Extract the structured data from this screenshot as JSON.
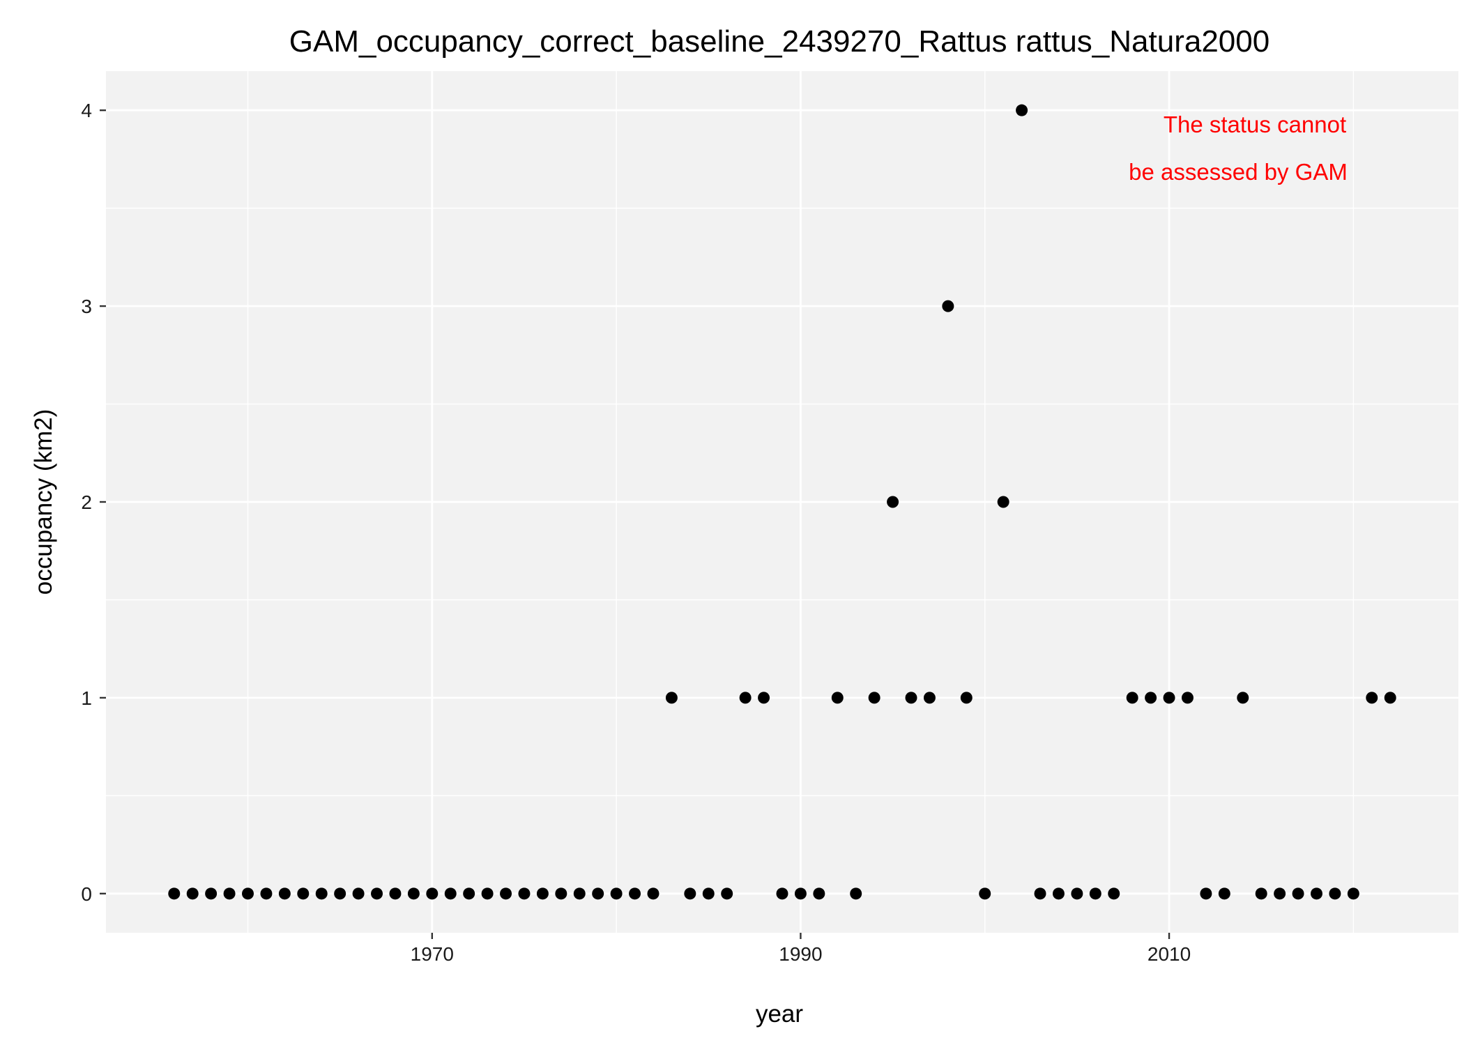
{
  "chart_data": {
    "type": "scatter",
    "title": "GAM_occupancy_correct_baseline_2439270_Rattus rattus_Natura2000",
    "xlabel": "year",
    "ylabel": "occupancy (km2)",
    "xlim": [
      1952.3,
      2025.7
    ],
    "ylim": [
      -0.2,
      4.2
    ],
    "x_major_ticks": [
      1970,
      1990,
      2010
    ],
    "x_tick_labels": [
      "1970",
      "1990",
      "2010"
    ],
    "x_minor_ticks": [
      1960,
      1980,
      2000,
      2020
    ],
    "y_major_ticks": [
      0,
      1,
      2,
      3,
      4
    ],
    "y_tick_labels": [
      "0",
      "1",
      "2",
      "3",
      "4"
    ],
    "y_minor_ticks": [
      0.5,
      1.5,
      2.5,
      3.5
    ],
    "grid": true,
    "legend": "none",
    "colors": {
      "panel_background": "#f2f2f2",
      "grid": "#ffffff",
      "points": "#000000",
      "annotation": "#ff0000"
    },
    "annotation": {
      "lines": [
        "The status cannot",
        "be assessed by GAM"
      ],
      "color": "#ff0000"
    },
    "points": [
      {
        "x": 1956,
        "y": 0
      },
      {
        "x": 1957,
        "y": 0
      },
      {
        "x": 1958,
        "y": 0
      },
      {
        "x": 1959,
        "y": 0
      },
      {
        "x": 1960,
        "y": 0
      },
      {
        "x": 1961,
        "y": 0
      },
      {
        "x": 1962,
        "y": 0
      },
      {
        "x": 1963,
        "y": 0
      },
      {
        "x": 1964,
        "y": 0
      },
      {
        "x": 1965,
        "y": 0
      },
      {
        "x": 1966,
        "y": 0
      },
      {
        "x": 1967,
        "y": 0
      },
      {
        "x": 1968,
        "y": 0
      },
      {
        "x": 1969,
        "y": 0
      },
      {
        "x": 1970,
        "y": 0
      },
      {
        "x": 1971,
        "y": 0
      },
      {
        "x": 1972,
        "y": 0
      },
      {
        "x": 1973,
        "y": 0
      },
      {
        "x": 1974,
        "y": 0
      },
      {
        "x": 1975,
        "y": 0
      },
      {
        "x": 1976,
        "y": 0
      },
      {
        "x": 1977,
        "y": 0
      },
      {
        "x": 1978,
        "y": 0
      },
      {
        "x": 1979,
        "y": 0
      },
      {
        "x": 1980,
        "y": 0
      },
      {
        "x": 1981,
        "y": 0
      },
      {
        "x": 1982,
        "y": 0
      },
      {
        "x": 1983,
        "y": 1
      },
      {
        "x": 1984,
        "y": 0
      },
      {
        "x": 1985,
        "y": 0
      },
      {
        "x": 1986,
        "y": 0
      },
      {
        "x": 1987,
        "y": 1
      },
      {
        "x": 1988,
        "y": 1
      },
      {
        "x": 1989,
        "y": 0
      },
      {
        "x": 1990,
        "y": 0
      },
      {
        "x": 1991,
        "y": 0
      },
      {
        "x": 1992,
        "y": 1
      },
      {
        "x": 1993,
        "y": 0
      },
      {
        "x": 1994,
        "y": 1
      },
      {
        "x": 1995,
        "y": 2
      },
      {
        "x": 1996,
        "y": 1
      },
      {
        "x": 1997,
        "y": 1
      },
      {
        "x": 1998,
        "y": 3
      },
      {
        "x": 1999,
        "y": 1
      },
      {
        "x": 2000,
        "y": 0
      },
      {
        "x": 2001,
        "y": 2
      },
      {
        "x": 2002,
        "y": 4
      },
      {
        "x": 2003,
        "y": 0
      },
      {
        "x": 2004,
        "y": 0
      },
      {
        "x": 2005,
        "y": 0
      },
      {
        "x": 2006,
        "y": 0
      },
      {
        "x": 2007,
        "y": 0
      },
      {
        "x": 2008,
        "y": 1
      },
      {
        "x": 2009,
        "y": 1
      },
      {
        "x": 2010,
        "y": 1
      },
      {
        "x": 2011,
        "y": 1
      },
      {
        "x": 2012,
        "y": 0
      },
      {
        "x": 2013,
        "y": 0
      },
      {
        "x": 2014,
        "y": 1
      },
      {
        "x": 2015,
        "y": 0
      },
      {
        "x": 2016,
        "y": 0
      },
      {
        "x": 2017,
        "y": 0
      },
      {
        "x": 2018,
        "y": 0
      },
      {
        "x": 2019,
        "y": 0
      },
      {
        "x": 2020,
        "y": 0
      },
      {
        "x": 2021,
        "y": 1
      },
      {
        "x": 2022,
        "y": 1
      }
    ]
  }
}
